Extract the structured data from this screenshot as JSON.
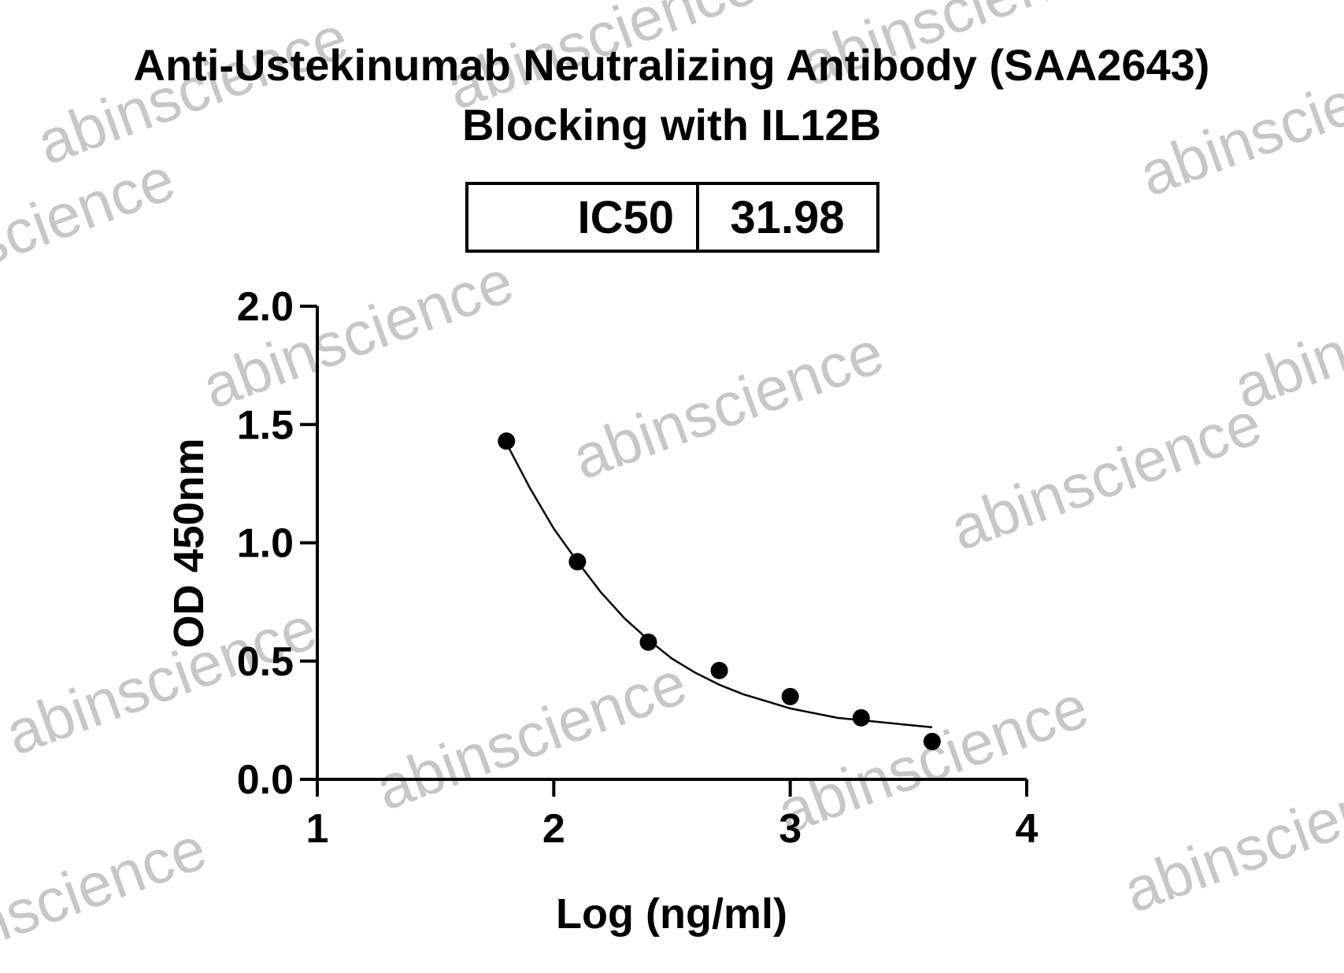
{
  "chart_data": {
    "type": "scatter",
    "title_lines": [
      "Anti-Ustekinumab Neutralizing Antibody (SAA2643)",
      "Blocking with IL12B"
    ],
    "xlabel": "Log (ng/ml)",
    "ylabel": "OD 450nm",
    "xlim": [
      1,
      4
    ],
    "ylim": [
      0,
      2.0
    ],
    "x_ticks": [
      "1",
      "2",
      "3",
      "4"
    ],
    "y_ticks": [
      "0.0",
      "0.5",
      "1.0",
      "1.5",
      "2.0"
    ],
    "x_tick_values": [
      1,
      2,
      3,
      4
    ],
    "y_tick_values": [
      0,
      0.5,
      1.0,
      1.5,
      2.0
    ],
    "series": [
      {
        "x": [
          1.8,
          2.1,
          2.4,
          2.7,
          3.0,
          3.3,
          3.6
        ],
        "y": [
          1.43,
          0.92,
          0.58,
          0.46,
          0.35,
          0.26,
          0.16
        ]
      }
    ],
    "fit_curve": {
      "type": "four-parameter logistic (inhibition)",
      "x": [
        1.8,
        1.9,
        2.0,
        2.1,
        2.2,
        2.3,
        2.4,
        2.5,
        2.6,
        2.7,
        2.8,
        2.9,
        3.0,
        3.1,
        3.2,
        3.3,
        3.4,
        3.5,
        3.6
      ],
      "y": [
        1.42,
        1.23,
        1.06,
        0.92,
        0.79,
        0.68,
        0.59,
        0.51,
        0.45,
        0.4,
        0.36,
        0.33,
        0.3,
        0.28,
        0.26,
        0.25,
        0.24,
        0.23,
        0.22
      ]
    },
    "ic50_table": {
      "label": "IC50",
      "value": "31.98"
    },
    "grid": false,
    "legend": "none"
  },
  "watermark": {
    "text": "abinscience",
    "color": "#9a9a9a"
  }
}
